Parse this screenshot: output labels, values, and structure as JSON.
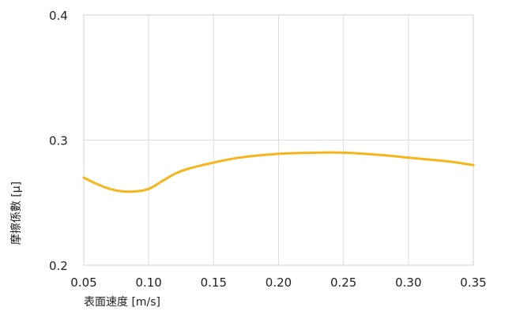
{
  "chart_data": {
    "type": "line",
    "xlabel": "表面速度 [m/s]",
    "ylabel": "摩擦係數 [μ]",
    "xlim": [
      0.05,
      0.35
    ],
    "ylim": [
      0.2,
      0.4
    ],
    "x_ticks": [
      "0.05",
      "0.10",
      "0.15",
      "0.20",
      "0.25",
      "0.30",
      "0.35"
    ],
    "y_ticks": [
      "0.4",
      "0.3",
      "0.2"
    ],
    "grid": true,
    "series": [
      {
        "color": "#f5b51b",
        "x": [
          0.05,
          0.06,
          0.07,
          0.08,
          0.09,
          0.1,
          0.11,
          0.12,
          0.13,
          0.15,
          0.17,
          0.2,
          0.23,
          0.25,
          0.28,
          0.3,
          0.33,
          0.35
        ],
        "y": [
          0.27,
          0.265,
          0.261,
          0.259,
          0.259,
          0.261,
          0.267,
          0.273,
          0.277,
          0.282,
          0.286,
          0.289,
          0.29,
          0.29,
          0.288,
          0.286,
          0.283,
          0.28
        ]
      }
    ]
  }
}
